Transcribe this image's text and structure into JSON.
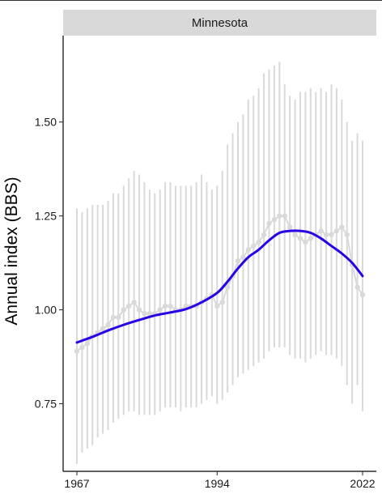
{
  "chart_data": {
    "type": "line",
    "panel": "Minnesota",
    "ylabel": "Annual index (BBS)",
    "xlabel": "",
    "xlim": [
      1967,
      2022
    ],
    "ylim": [
      0.57,
      1.73
    ],
    "x_ticks": [
      {
        "value": 1967,
        "label": "1967"
      },
      {
        "value": 1994,
        "label": "1994"
      },
      {
        "value": 2022,
        "label": "2022"
      }
    ],
    "y_ticks": [
      {
        "value": 0.75,
        "label": "0.75"
      },
      {
        "value": 1.0,
        "label": "1.00"
      },
      {
        "value": 1.25,
        "label": "1.25"
      },
      {
        "value": 1.5,
        "label": "1.50"
      }
    ],
    "grid": false,
    "colors": {
      "index": "#d9d9d9",
      "interval": "#d9d9d9",
      "trend": "#2a00e6",
      "strip": "#d9d9d9"
    },
    "series": [
      {
        "role": "annual-index",
        "x": [
          1967,
          1968,
          1969,
          1970,
          1971,
          1972,
          1973,
          1974,
          1975,
          1976,
          1977,
          1978,
          1979,
          1980,
          1981,
          1982,
          1983,
          1984,
          1985,
          1986,
          1987,
          1988,
          1989,
          1990,
          1991,
          1992,
          1993,
          1994,
          1995,
          1996,
          1997,
          1998,
          1999,
          2000,
          2001,
          2002,
          2003,
          2004,
          2005,
          2006,
          2007,
          2008,
          2009,
          2010,
          2011,
          2012,
          2013,
          2014,
          2015,
          2016,
          2017,
          2018,
          2019,
          2020,
          2021,
          2022
        ],
        "y": [
          0.89,
          0.9,
          0.91,
          0.93,
          0.94,
          0.95,
          0.96,
          0.98,
          0.98,
          1.0,
          1.01,
          1.02,
          1.0,
          0.99,
          0.99,
          0.99,
          1.0,
          1.01,
          1.01,
          1.0,
          1.0,
          1.01,
          1.01,
          1.01,
          1.02,
          1.03,
          1.04,
          1.01,
          1.02,
          1.06,
          1.09,
          1.13,
          1.14,
          1.16,
          1.17,
          1.18,
          1.2,
          1.23,
          1.24,
          1.25,
          1.25,
          1.22,
          1.2,
          1.19,
          1.18,
          1.19,
          1.2,
          1.21,
          1.2,
          1.2,
          1.21,
          1.22,
          1.2,
          1.12,
          1.06,
          1.04
        ],
        "lower": [
          0.59,
          0.62,
          0.63,
          0.64,
          0.66,
          0.67,
          0.68,
          0.7,
          0.71,
          0.72,
          0.73,
          0.73,
          0.72,
          0.72,
          0.72,
          0.72,
          0.73,
          0.74,
          0.74,
          0.74,
          0.73,
          0.74,
          0.74,
          0.74,
          0.75,
          0.76,
          0.77,
          0.75,
          0.76,
          0.78,
          0.8,
          0.82,
          0.83,
          0.84,
          0.85,
          0.86,
          0.87,
          0.89,
          0.9,
          0.9,
          0.9,
          0.88,
          0.87,
          0.87,
          0.86,
          0.87,
          0.88,
          0.89,
          0.88,
          0.88,
          0.87,
          0.85,
          0.8,
          0.75,
          0.8,
          0.73
        ],
        "upper": [
          1.27,
          1.26,
          1.27,
          1.28,
          1.28,
          1.28,
          1.29,
          1.31,
          1.31,
          1.33,
          1.35,
          1.37,
          1.36,
          1.34,
          1.32,
          1.31,
          1.32,
          1.34,
          1.34,
          1.33,
          1.33,
          1.33,
          1.33,
          1.34,
          1.36,
          1.34,
          1.32,
          1.33,
          1.37,
          1.44,
          1.47,
          1.5,
          1.52,
          1.56,
          1.57,
          1.59,
          1.63,
          1.64,
          1.65,
          1.66,
          1.6,
          1.57,
          1.56,
          1.58,
          1.58,
          1.59,
          1.58,
          1.59,
          1.58,
          1.6,
          1.59,
          1.56,
          1.5,
          1.45,
          1.47,
          1.45
        ]
      },
      {
        "role": "smooth-trend",
        "x": [
          1967,
          1970,
          1973,
          1976,
          1979,
          1982,
          1985,
          1988,
          1991,
          1994,
          1996,
          1998,
          2000,
          2002,
          2004,
          2006,
          2008,
          2010,
          2012,
          2014,
          2016,
          2018,
          2020,
          2022
        ],
        "y": [
          0.913,
          0.928,
          0.945,
          0.96,
          0.973,
          0.985,
          0.993,
          1.002,
          1.02,
          1.045,
          1.075,
          1.11,
          1.14,
          1.16,
          1.185,
          1.205,
          1.21,
          1.21,
          1.205,
          1.19,
          1.17,
          1.15,
          1.125,
          1.09
        ]
      }
    ]
  }
}
